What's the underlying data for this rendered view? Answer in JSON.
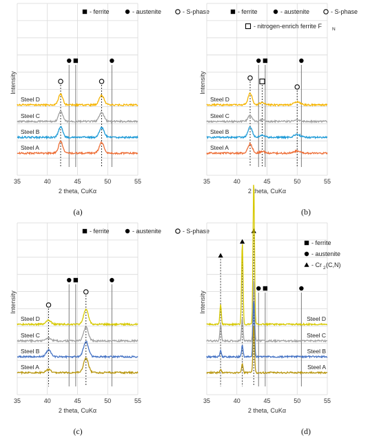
{
  "chart_data": [
    {
      "id": "a",
      "type": "line",
      "caption": "(a)",
      "xlabel": "2 theta, CuKα",
      "ylabel": "Intensity",
      "xlim": [
        35,
        55
      ],
      "xticks": [
        "35",
        "40",
        "45",
        "50",
        "55"
      ],
      "grid": true,
      "legend": [
        {
          "symbol": "square-filled",
          "text": "- ferrite"
        },
        {
          "symbol": "circle-filled",
          "text": "- austenite"
        },
        {
          "symbol": "circle-open",
          "text": "- S-phase"
        }
      ],
      "reference_lines": [
        {
          "phase": "austenite",
          "x": 43.6,
          "marker": "circle-filled",
          "level": 0.0
        },
        {
          "phase": "ferrite",
          "x": 44.7,
          "marker": "square-filled",
          "level": 0.0
        },
        {
          "phase": "austenite",
          "x": 50.7,
          "marker": "circle-filled",
          "level": 0.0
        }
      ],
      "phase_markers": [
        {
          "phase": "S-phase",
          "x": 42.2,
          "marker": "circle-open",
          "level": 0.25
        },
        {
          "phase": "S-phase",
          "x": 49.0,
          "marker": "circle-open",
          "level": 0.25
        }
      ],
      "series": [
        {
          "name": "Steel D",
          "color": "#f5b400",
          "peaks": [
            {
              "x": 42.2,
              "h": 0.55,
              "w": 0.35
            },
            {
              "x": 49.0,
              "h": 0.5,
              "w": 0.4
            }
          ]
        },
        {
          "name": "Steel C",
          "color": "#a0a0a0",
          "peaks": [
            {
              "x": 42.2,
              "h": 0.5,
              "w": 0.35
            },
            {
              "x": 49.0,
              "h": 0.45,
              "w": 0.4
            }
          ]
        },
        {
          "name": "Steel B",
          "color": "#1f9bd7",
          "peaks": [
            {
              "x": 42.2,
              "h": 0.55,
              "w": 0.35
            },
            {
              "x": 49.0,
              "h": 0.5,
              "w": 0.4
            }
          ]
        },
        {
          "name": "Steel A",
          "color": "#ed6d35",
          "peaks": [
            {
              "x": 42.2,
              "h": 0.6,
              "w": 0.35
            },
            {
              "x": 49.0,
              "h": 0.55,
              "w": 0.4
            }
          ]
        }
      ]
    },
    {
      "id": "b",
      "type": "line",
      "caption": "(b)",
      "xlabel": "2 theta, CuKα",
      "ylabel": "Intensity",
      "xlim": [
        35,
        55
      ],
      "xticks": [
        "35",
        "40",
        "45",
        "50",
        "55"
      ],
      "grid": true,
      "legend": [
        {
          "symbol": "square-filled",
          "text": "- ferrite"
        },
        {
          "symbol": "circle-filled",
          "text": "- austenite"
        },
        {
          "symbol": "circle-open",
          "text": "- S-phase"
        },
        {
          "symbol": "square-open",
          "text": "- nitrogen-enrich ferrite F",
          "sub": "N"
        }
      ],
      "reference_lines": [
        {
          "phase": "austenite",
          "x": 43.6,
          "marker": "circle-filled",
          "level": 0.0
        },
        {
          "phase": "ferrite",
          "x": 44.7,
          "marker": "square-filled",
          "level": 0.0
        },
        {
          "phase": "austenite",
          "x": 50.7,
          "marker": "circle-filled",
          "level": 0.0
        }
      ],
      "phase_markers": [
        {
          "phase": "S-phase",
          "x": 42.2,
          "marker": "circle-open",
          "level": 0.2
        },
        {
          "phase": "nitrogen-enrich ferrite",
          "x": 44.2,
          "marker": "square-open",
          "level": 0.25
        },
        {
          "phase": "S-phase",
          "x": 50.0,
          "marker": "circle-open",
          "level": 0.3
        }
      ],
      "series": [
        {
          "name": "Steel D",
          "color": "#f5b400",
          "peaks": [
            {
              "x": 42.2,
              "h": 0.6,
              "w": 0.35
            },
            {
              "x": 44.2,
              "h": 0.12,
              "w": 0.4
            },
            {
              "x": 50.0,
              "h": 0.15,
              "w": 0.5
            }
          ]
        },
        {
          "name": "Steel C",
          "color": "#a0a0a0",
          "peaks": [
            {
              "x": 42.2,
              "h": 0.3,
              "w": 0.35
            },
            {
              "x": 44.2,
              "h": 0.08,
              "w": 0.4
            },
            {
              "x": 50.0,
              "h": 0.08,
              "w": 0.5
            }
          ]
        },
        {
          "name": "Steel B",
          "color": "#1f9bd7",
          "peaks": [
            {
              "x": 42.2,
              "h": 0.55,
              "w": 0.35
            },
            {
              "x": 44.2,
              "h": 0.1,
              "w": 0.4
            },
            {
              "x": 50.0,
              "h": 0.15,
              "w": 0.5
            }
          ]
        },
        {
          "name": "Steel A",
          "color": "#ed6d35",
          "peaks": [
            {
              "x": 42.2,
              "h": 0.5,
              "w": 0.35
            },
            {
              "x": 44.2,
              "h": 0.1,
              "w": 0.4
            },
            {
              "x": 50.0,
              "h": 0.12,
              "w": 0.5
            }
          ]
        }
      ]
    },
    {
      "id": "c",
      "type": "line",
      "caption": "(c)",
      "xlabel": "2 theta, CuKα",
      "ylabel": "Intensity",
      "xlim": [
        35,
        55
      ],
      "xticks": [
        "35",
        "40",
        "45",
        "50",
        "55"
      ],
      "grid": true,
      "legend": [
        {
          "symbol": "square-filled",
          "text": "- ferrite"
        },
        {
          "symbol": "circle-filled",
          "text": "- austenite"
        },
        {
          "symbol": "circle-open",
          "text": "- S-phase"
        }
      ],
      "reference_lines": [
        {
          "phase": "austenite",
          "x": 43.6,
          "marker": "circle-filled",
          "level": 0.0
        },
        {
          "phase": "ferrite",
          "x": 44.7,
          "marker": "square-filled",
          "level": 0.0
        },
        {
          "phase": "austenite",
          "x": 50.7,
          "marker": "circle-filled",
          "level": 0.0
        }
      ],
      "phase_markers": [
        {
          "phase": "S-phase",
          "x": 40.2,
          "marker": "circle-open",
          "level": 0.35
        },
        {
          "phase": "S-phase",
          "x": 46.4,
          "marker": "circle-open",
          "level": 0.15
        }
      ],
      "series": [
        {
          "name": "Steel D",
          "color": "#d6c800",
          "peaks": [
            {
              "x": 40.2,
              "h": 0.2,
              "w": 0.4
            },
            {
              "x": 46.4,
              "h": 0.75,
              "w": 0.4
            }
          ]
        },
        {
          "name": "Steel C",
          "color": "#a0a0a0",
          "peaks": [
            {
              "x": 40.2,
              "h": 0.15,
              "w": 0.4
            },
            {
              "x": 46.4,
              "h": 0.7,
              "w": 0.4
            }
          ]
        },
        {
          "name": "Steel B",
          "color": "#4472c4",
          "peaks": [
            {
              "x": 40.2,
              "h": 0.35,
              "w": 0.4
            },
            {
              "x": 46.4,
              "h": 0.8,
              "w": 0.4
            }
          ]
        },
        {
          "name": "Steel A",
          "color": "#b8960e",
          "peaks": [
            {
              "x": 40.2,
              "h": 0.15,
              "w": 0.4
            },
            {
              "x": 46.4,
              "h": 0.75,
              "w": 0.4
            }
          ]
        }
      ]
    },
    {
      "id": "d",
      "type": "line",
      "caption": "(d)",
      "xlabel": "2 theta, CuKα",
      "ylabel": "Intensity",
      "xlim": [
        35,
        55
      ],
      "xticks": [
        "35",
        "40",
        "45",
        "50",
        "55"
      ],
      "grid": true,
      "legend": [
        {
          "symbol": "square-filled",
          "text": "- ferrite"
        },
        {
          "symbol": "circle-filled",
          "text": "- austenite"
        },
        {
          "symbol": "triangle-filled",
          "text": "- Cr",
          "sub": "2",
          "tail": "(C,N)"
        }
      ],
      "reference_lines": [
        {
          "phase": "austenite",
          "x": 43.6,
          "marker": "circle-filled",
          "level": 0.55
        },
        {
          "phase": "ferrite",
          "x": 44.7,
          "marker": "square-filled",
          "level": 0.55
        },
        {
          "phase": "austenite",
          "x": 50.7,
          "marker": "circle-filled",
          "level": 0.55
        }
      ],
      "phase_markers": [
        {
          "phase": "Cr2(C,N)",
          "x": 37.3,
          "marker": "triangle-filled",
          "level": 0.7
        },
        {
          "phase": "Cr2(C,N)",
          "x": 40.9,
          "marker": "triangle-filled",
          "level": 0.87
        },
        {
          "phase": "Cr2(C,N)",
          "x": 42.8,
          "marker": "triangle-filled",
          "level": 1.0
        }
      ],
      "series": [
        {
          "name": "Steel D",
          "color": "#d6c800",
          "peaks": [
            {
              "x": 37.3,
              "h": 0.35,
              "w": 0.12
            },
            {
              "x": 40.9,
              "h": 1.45,
              "w": 0.12
            },
            {
              "x": 42.8,
              "h": 2.55,
              "w": 0.12
            }
          ]
        },
        {
          "name": "Steel C",
          "color": "#a0a0a0",
          "peaks": [
            {
              "x": 37.3,
              "h": 0.3,
              "w": 0.12
            },
            {
              "x": 40.9,
              "h": 0.4,
              "w": 0.12
            },
            {
              "x": 42.8,
              "h": 1.1,
              "w": 0.12
            }
          ]
        },
        {
          "name": "Steel B",
          "color": "#4472c4",
          "peaks": [
            {
              "x": 37.3,
              "h": 0.1,
              "w": 0.12
            },
            {
              "x": 40.9,
              "h": 0.2,
              "w": 0.12
            },
            {
              "x": 42.8,
              "h": 1.0,
              "w": 0.12
            }
          ]
        },
        {
          "name": "Steel A",
          "color": "#b8960e",
          "peaks": [
            {
              "x": 37.3,
              "h": 0.05,
              "w": 0.12
            },
            {
              "x": 40.9,
              "h": 0.15,
              "w": 0.12
            },
            {
              "x": 42.8,
              "h": 0.85,
              "w": 0.12
            }
          ]
        }
      ]
    }
  ]
}
